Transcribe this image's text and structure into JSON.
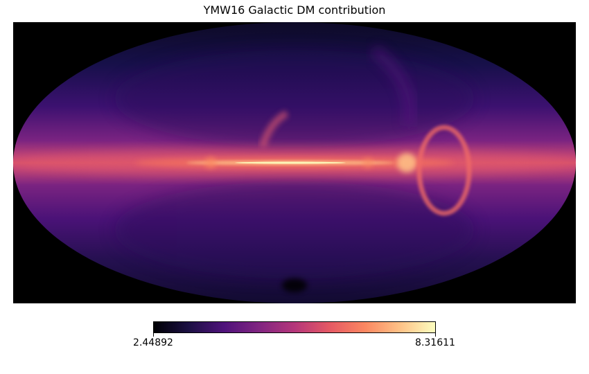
{
  "title": "YMW16 Galactic DM contribution",
  "projection": "mollweide",
  "colormap": {
    "name": "magma",
    "min_label": "2.44892",
    "max_label": "8.31611",
    "stops": [
      "#000004",
      "#1c1044",
      "#4f127b",
      "#812581",
      "#b5367a",
      "#e55964",
      "#fb8761",
      "#fec287",
      "#fcfdbf"
    ]
  },
  "background_color": "#000000"
}
